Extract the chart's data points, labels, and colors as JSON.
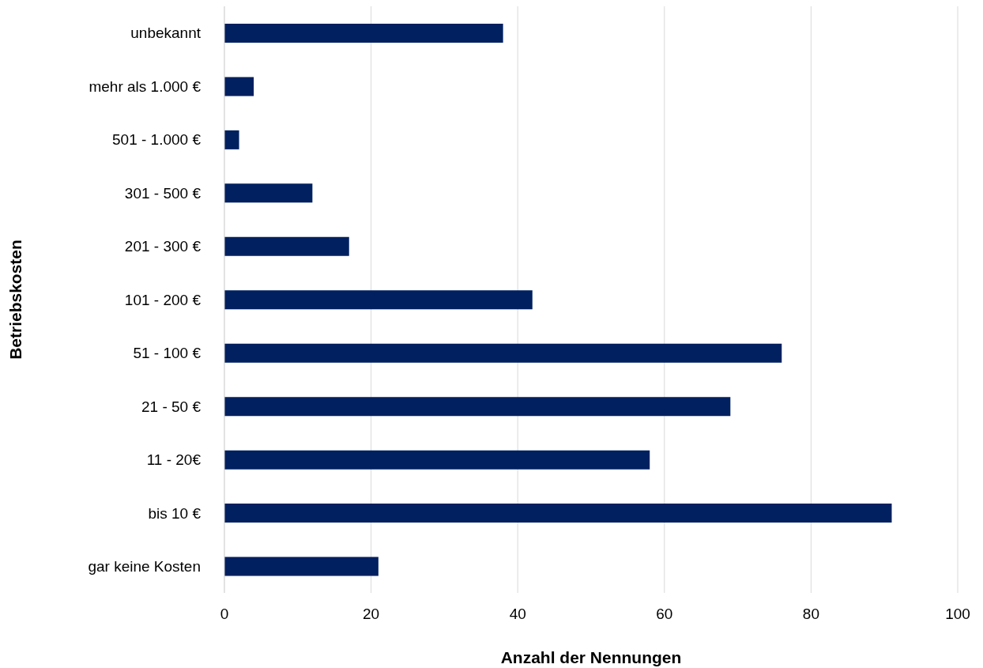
{
  "chart_data": {
    "type": "bar",
    "orientation": "horizontal",
    "xlabel": "Anzahl der Nennungen",
    "ylabel": "Betriebskosten",
    "categories": [
      "unbekannt",
      "mehr als 1.000 €",
      "501 - 1.000 €",
      "301 - 500 €",
      "201 - 300 €",
      "101 - 200 €",
      "51 - 100 €",
      "21 - 50 €",
      "11 - 20€",
      "bis 10 €",
      "gar keine Kosten"
    ],
    "values": [
      38,
      4,
      2,
      12,
      17,
      42,
      76,
      69,
      58,
      91,
      21
    ],
    "color": "#002060",
    "xlim": [
      0,
      100
    ],
    "xticks": [
      0,
      20,
      40,
      60,
      80,
      100
    ],
    "grid": "x"
  }
}
